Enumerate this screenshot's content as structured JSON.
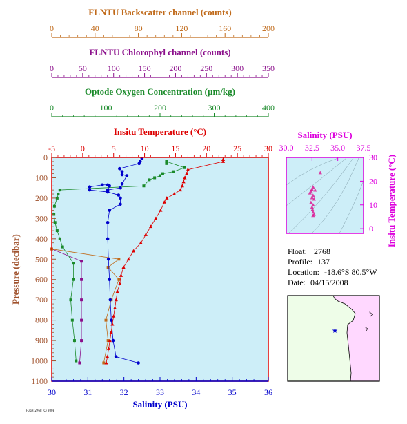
{
  "chart_data": [
    {
      "type": "line",
      "title": "",
      "colors": {
        "backscatter": "#c06a1a",
        "chlorophyll": "#8b0f8b",
        "oxygen": "#1a8a2a",
        "temperature": "#dd0000",
        "salinity": "#0000cc",
        "pressure_axis": "#a0522d",
        "plot_bg": "#cdeef8"
      },
      "axes": {
        "pressure": {
          "label": "Pressure (decibar)",
          "range": [
            0,
            1100
          ],
          "reversed": true,
          "ticks": [
            "0",
            "100",
            "200",
            "300",
            "400",
            "500",
            "600",
            "700",
            "800",
            "900",
            "1000",
            "1100"
          ]
        },
        "salinity": {
          "label": "Salinity (PSU)",
          "range": [
            30,
            36
          ],
          "ticks": [
            "30",
            "31",
            "32",
            "33",
            "34",
            "35",
            "36"
          ]
        },
        "temperature": {
          "label": "Insitu Temperature (°C)",
          "range": [
            -5,
            30
          ],
          "ticks": [
            "-5",
            "0",
            "5",
            "10",
            "15",
            "20",
            "25",
            "30"
          ]
        },
        "oxygen": {
          "label": "Optode Oxygen Concentration (µm/kg)",
          "range": [
            0,
            400
          ],
          "ticks": [
            "0",
            "100",
            "200",
            "300",
            "400"
          ]
        },
        "chlorophyll": {
          "label": "FLNTU Chlorophyl channel (counts)",
          "range": [
            0,
            350
          ],
          "ticks": [
            "0",
            "50",
            "100",
            "150",
            "200",
            "250",
            "300",
            "350"
          ]
        },
        "backscatter": {
          "label": "FLNTU Backscatter channel (counts)",
          "range": [
            0,
            200
          ],
          "ticks": [
            "0",
            "40",
            "80",
            "120",
            "160",
            "200"
          ]
        }
      },
      "series": [
        {
          "key": "temperature",
          "name": "Insitu Temperature",
          "unit": "°C",
          "points": [
            [
              22.7,
              10
            ],
            [
              22.7,
              20
            ],
            [
              17,
              60
            ],
            [
              16.8,
              80
            ],
            [
              16.5,
              100
            ],
            [
              16.3,
              120
            ],
            [
              16.1,
              140
            ],
            [
              15.8,
              160
            ],
            [
              14.8,
              180
            ],
            [
              13.6,
              200
            ],
            [
              13.2,
              220
            ],
            [
              12.6,
              260
            ],
            [
              11.8,
              300
            ],
            [
              11,
              340
            ],
            [
              10.2,
              380
            ],
            [
              9.4,
              420
            ],
            [
              8.2,
              460
            ],
            [
              7.4,
              500
            ],
            [
              6.6,
              540
            ],
            [
              6.2,
              580
            ],
            [
              6,
              620
            ],
            [
              5.6,
              660
            ],
            [
              5.4,
              700
            ],
            [
              5.2,
              740
            ],
            [
              5,
              780
            ],
            [
              4.8,
              820
            ],
            [
              4.6,
              860
            ],
            [
              4.4,
              900
            ],
            [
              4.2,
              940
            ],
            [
              4,
              980
            ],
            [
              3.8,
              1010
            ]
          ]
        },
        {
          "key": "salinity",
          "name": "Salinity",
          "unit": "PSU",
          "points": [
            [
              32.5,
              5
            ],
            [
              32.45,
              20
            ],
            [
              32.42,
              30
            ],
            [
              31.88,
              55
            ],
            [
              31.95,
              70
            ],
            [
              31.95,
              85
            ],
            [
              32.08,
              90
            ],
            [
              31.95,
              130
            ],
            [
              31.9,
              150
            ],
            [
              31.55,
              160
            ],
            [
              31.6,
              140
            ],
            [
              31.55,
              135
            ],
            [
              31.4,
              135
            ],
            [
              31.05,
              145
            ],
            [
              31.05,
              160
            ],
            [
              31.55,
              170
            ],
            [
              31.85,
              185
            ],
            [
              31.9,
              200
            ],
            [
              31.9,
              230
            ],
            [
              31.6,
              260
            ],
            [
              31.55,
              320
            ],
            [
              31.55,
              400
            ],
            [
              31.57,
              500
            ],
            [
              31.6,
              600
            ],
            [
              31.62,
              700
            ],
            [
              31.65,
              800
            ],
            [
              31.7,
              900
            ],
            [
              31.78,
              980
            ],
            [
              32.4,
              1010
            ]
          ]
        },
        {
          "key": "oxygen",
          "name": "Optode Oxygen Concentration",
          "unit": "µm/kg",
          "points": [
            [
              212,
              30
            ],
            [
              212,
              20
            ],
            [
              245,
              50
            ],
            [
              225,
              70
            ],
            [
              205,
              80
            ],
            [
              200,
              90
            ],
            [
              190,
              100
            ],
            [
              180,
              110
            ],
            [
              170,
              140
            ],
            [
              15,
              160
            ],
            [
              12,
              180
            ],
            [
              10,
              200
            ],
            [
              5,
              240
            ],
            [
              4,
              280
            ],
            [
              6,
              320
            ],
            [
              10,
              360
            ],
            [
              15,
              400
            ],
            [
              20,
              440
            ],
            [
              40,
              520
            ],
            [
              40,
              600
            ],
            [
              35,
              700
            ],
            [
              38,
              800
            ],
            [
              42,
              900
            ],
            [
              45,
              1000
            ]
          ]
        },
        {
          "key": "chlorophyll",
          "name": "FLNTU Chlorophyl channel",
          "unit": "counts",
          "points": [
            [
              0,
              450
            ],
            [
              48,
              510
            ],
            [
              48,
              600
            ],
            [
              48,
              700
            ],
            [
              48,
              800
            ],
            [
              48,
              900
            ],
            [
              45,
              1010
            ]
          ]
        },
        {
          "key": "backscatter",
          "name": "FLNTU Backscatter channel",
          "unit": "counts",
          "points": [
            [
              0,
              450
            ],
            [
              62,
              500
            ],
            [
              52,
              540
            ],
            [
              62,
              600
            ],
            [
              55,
              700
            ],
            [
              50,
              800
            ],
            [
              52,
              900
            ],
            [
              48,
              1010
            ]
          ]
        }
      ]
    },
    {
      "type": "scatter",
      "title": "",
      "xlabel": "Salinity (PSU)",
      "ylabel": "Insitu Temperature (°C)",
      "xlim": [
        30,
        37.5
      ],
      "ylim": [
        -2,
        30
      ],
      "xticks": [
        "30.0",
        "32.5",
        "35.0",
        "37.5"
      ],
      "yticks": [
        "0",
        "10",
        "20",
        "30"
      ],
      "color": "#dd0088",
      "points": [
        [
          33.3,
          23.5
        ],
        [
          32.6,
          17.5
        ],
        [
          32.5,
          16.5
        ],
        [
          32.8,
          16.2
        ],
        [
          32.4,
          15.8
        ],
        [
          32.3,
          15
        ],
        [
          32.6,
          14
        ],
        [
          32.5,
          13
        ],
        [
          32.7,
          12.4
        ],
        [
          32.4,
          11
        ],
        [
          32.6,
          10
        ],
        [
          32.5,
          9
        ],
        [
          32.55,
          8
        ],
        [
          32.6,
          7
        ],
        [
          32.7,
          6
        ],
        [
          32.6,
          5.5
        ]
      ]
    }
  ],
  "info": {
    "float_label": "Float:",
    "float_value": "2768",
    "profile_label": "Profile:",
    "profile_value": "137",
    "location_label": "Location:",
    "location_value": "-18.6°S  80.5°W",
    "date_label": "Date:",
    "date_value": "04/15/2008"
  },
  "map": {
    "location": {
      "lat": -18.6,
      "lon": -80.5
    },
    "marker_label": "float position"
  },
  "footer_stamp": "FLOAT2768 (C) 2008"
}
